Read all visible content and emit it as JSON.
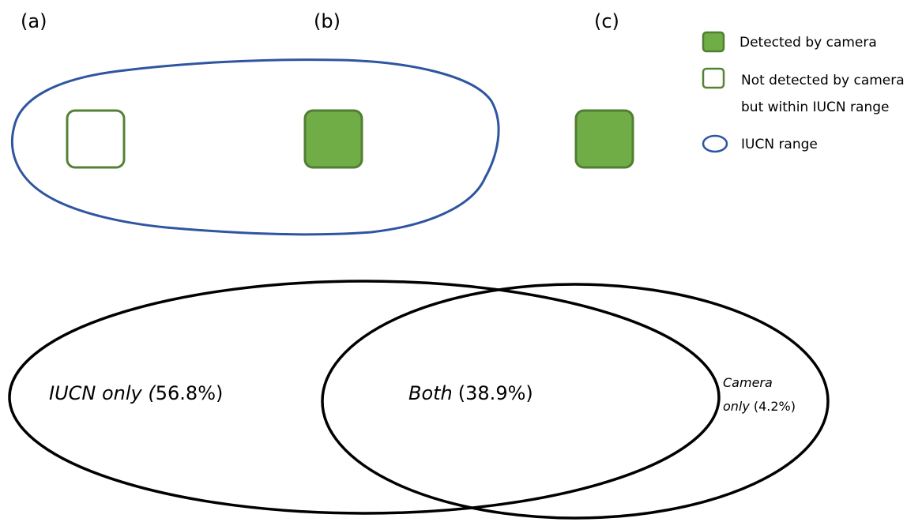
{
  "colors": {
    "detected_fill": "#70ad47",
    "detected_stroke": "#507e32",
    "not_detected_stroke": "#548235",
    "iucn_range_stroke": "#2f55a0",
    "venn_stroke": "#000000"
  },
  "panels": {
    "a": "(a)",
    "b": "(b)",
    "c": "(c)"
  },
  "legend": {
    "detected": "Detected by camera",
    "not_detected_line1": "Not detected by camera",
    "not_detected_line2": "but within IUCN range",
    "iucn_range": "IUCN range"
  },
  "venn": {
    "iucn_only": {
      "label": "IUCN only (",
      "value": "56.8%)"
    },
    "both": {
      "label": "Both",
      "value": "(38.9%)"
    },
    "camera_only": {
      "label_line1": "Camera",
      "label_line2": "only",
      "value": "(4.2%)"
    }
  }
}
